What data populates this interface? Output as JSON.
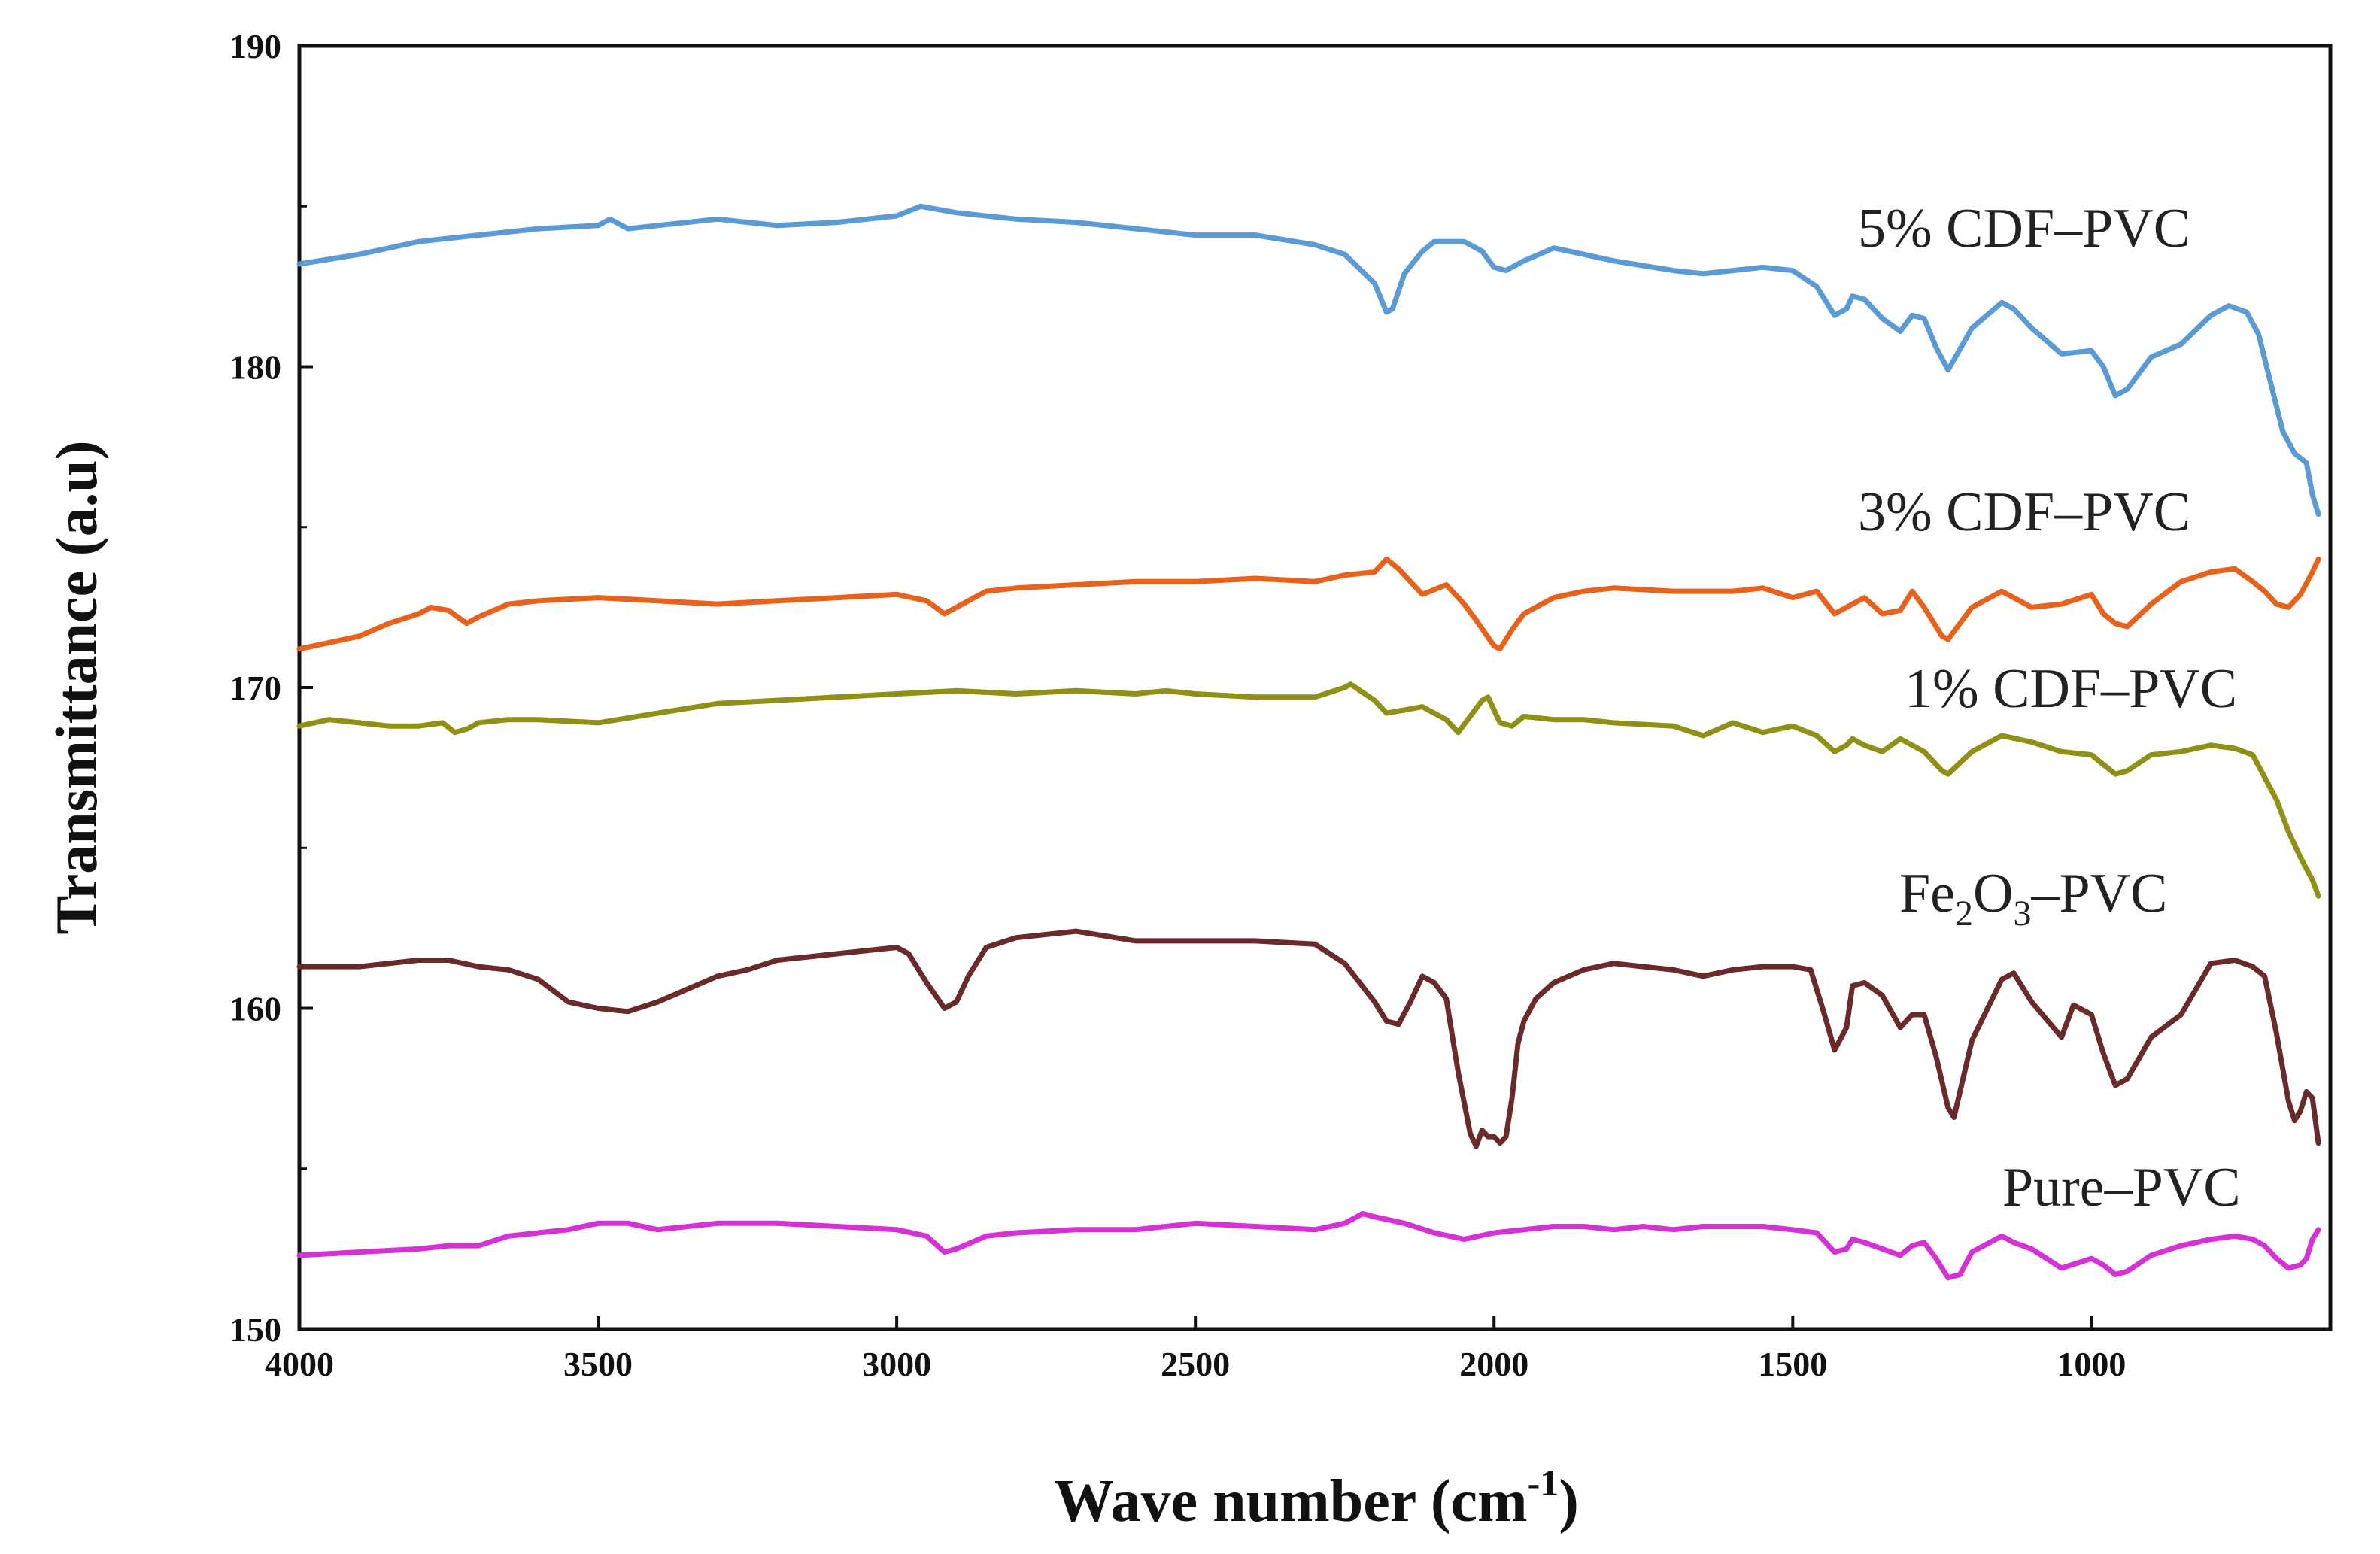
{
  "chart_data": {
    "type": "line",
    "title": "",
    "xlabel": "Wave number (cm",
    "xlabel_sup": "-1",
    "xlabel_close": ")",
    "ylabel": "Transmittance (a.u)",
    "xlim": [
      4000,
      600
    ],
    "ylim": [
      150,
      190
    ],
    "x_ticks": [
      4000,
      3500,
      3000,
      2500,
      2000,
      1500,
      1000
    ],
    "y_ticks": [
      150,
      160,
      170,
      180,
      190
    ],
    "grid": false,
    "series": [
      {
        "name": "5% CDF–PVC",
        "label_parts": {
          "text": "5% CDF–PVC"
        },
        "color": "#5B9BD5",
        "x": [
          4000,
          3900,
          3800,
          3700,
          3600,
          3500,
          3480,
          3450,
          3400,
          3300,
          3200,
          3100,
          3000,
          2960,
          2900,
          2800,
          2700,
          2600,
          2500,
          2400,
          2300,
          2250,
          2200,
          2180,
          2170,
          2150,
          2120,
          2100,
          2050,
          2020,
          2000,
          1980,
          1950,
          1900,
          1850,
          1800,
          1700,
          1650,
          1600,
          1550,
          1500,
          1460,
          1430,
          1410,
          1400,
          1380,
          1350,
          1320,
          1300,
          1280,
          1260,
          1240,
          1200,
          1150,
          1130,
          1100,
          1050,
          1000,
          980,
          960,
          940,
          900,
          850,
          800,
          770,
          740,
          720,
          700,
          680,
          660,
          640,
          630,
          620
        ],
        "y": [
          183.2,
          183.5,
          183.9,
          184.1,
          184.3,
          184.4,
          184.6,
          184.3,
          184.4,
          184.6,
          184.4,
          184.5,
          184.7,
          185.0,
          184.8,
          184.6,
          184.5,
          184.3,
          184.1,
          184.1,
          183.8,
          183.5,
          182.6,
          181.7,
          181.8,
          182.9,
          183.6,
          183.9,
          183.9,
          183.6,
          183.1,
          183.0,
          183.3,
          183.7,
          183.5,
          183.3,
          183.0,
          182.9,
          183.0,
          183.1,
          183.0,
          182.5,
          181.6,
          181.8,
          182.2,
          182.1,
          181.5,
          181.1,
          181.6,
          181.5,
          180.6,
          179.9,
          181.2,
          182.0,
          181.8,
          181.2,
          180.4,
          180.5,
          180.0,
          179.1,
          179.3,
          180.3,
          180.7,
          181.6,
          181.9,
          181.7,
          181.0,
          179.5,
          178.0,
          177.3,
          177.0,
          176.0,
          175.4
        ]
      },
      {
        "name": "3% CDF–PVC",
        "color": "#E8621C",
        "x": [
          4000,
          3950,
          3900,
          3850,
          3800,
          3780,
          3750,
          3720,
          3700,
          3650,
          3600,
          3500,
          3400,
          3300,
          3200,
          3100,
          3000,
          2950,
          2920,
          2900,
          2850,
          2800,
          2700,
          2600,
          2500,
          2400,
          2300,
          2250,
          2200,
          2180,
          2160,
          2120,
          2080,
          2050,
          2030,
          2000,
          1990,
          1970,
          1950,
          1900,
          1850,
          1800,
          1700,
          1600,
          1550,
          1500,
          1460,
          1430,
          1410,
          1400,
          1380,
          1350,
          1320,
          1300,
          1280,
          1250,
          1240,
          1200,
          1150,
          1100,
          1050,
          1000,
          980,
          960,
          940,
          900,
          850,
          800,
          760,
          730,
          710,
          690,
          670,
          650,
          630,
          620
        ],
        "y": [
          171.2,
          171.4,
          171.6,
          172.0,
          172.3,
          172.5,
          172.4,
          172.0,
          172.2,
          172.6,
          172.7,
          172.8,
          172.7,
          172.6,
          172.7,
          172.8,
          172.9,
          172.7,
          172.3,
          172.5,
          173.0,
          173.1,
          173.2,
          173.3,
          173.3,
          173.4,
          173.3,
          173.5,
          173.6,
          174.0,
          173.7,
          172.9,
          173.2,
          172.6,
          172.1,
          171.3,
          171.2,
          171.8,
          172.3,
          172.8,
          173.0,
          173.1,
          173.0,
          173.0,
          173.1,
          172.8,
          173.0,
          172.3,
          172.5,
          172.6,
          172.8,
          172.3,
          172.4,
          173.0,
          172.5,
          171.6,
          171.5,
          172.5,
          173.0,
          172.5,
          172.6,
          172.9,
          172.3,
          172.0,
          171.9,
          172.6,
          173.3,
          173.6,
          173.7,
          173.3,
          173.0,
          172.6,
          172.5,
          172.9,
          173.6,
          174.0
        ]
      },
      {
        "name": "1% CDF–PVC",
        "color": "#8F9014",
        "x": [
          4000,
          3950,
          3900,
          3850,
          3800,
          3760,
          3740,
          3720,
          3700,
          3650,
          3600,
          3500,
          3400,
          3300,
          3200,
          3100,
          3000,
          2900,
          2800,
          2700,
          2600,
          2550,
          2500,
          2400,
          2300,
          2250,
          2240,
          2200,
          2180,
          2150,
          2120,
          2080,
          2060,
          2040,
          2020,
          2010,
          2000,
          1990,
          1970,
          1950,
          1900,
          1850,
          1800,
          1700,
          1650,
          1600,
          1550,
          1500,
          1460,
          1430,
          1410,
          1400,
          1380,
          1350,
          1320,
          1300,
          1280,
          1250,
          1240,
          1200,
          1150,
          1100,
          1050,
          1000,
          980,
          960,
          940,
          900,
          850,
          800,
          760,
          730,
          710,
          690,
          670,
          650,
          630,
          620
        ],
        "y": [
          168.8,
          169.0,
          168.9,
          168.8,
          168.8,
          168.9,
          168.6,
          168.7,
          168.9,
          169.0,
          169.0,
          168.9,
          169.2,
          169.5,
          169.6,
          169.7,
          169.8,
          169.9,
          169.8,
          169.9,
          169.8,
          169.9,
          169.8,
          169.7,
          169.7,
          170.0,
          170.1,
          169.6,
          169.2,
          169.3,
          169.4,
          169.0,
          168.6,
          169.1,
          169.6,
          169.7,
          169.3,
          168.9,
          168.8,
          169.1,
          169.0,
          169.0,
          168.9,
          168.8,
          168.5,
          168.9,
          168.6,
          168.8,
          168.5,
          168.0,
          168.2,
          168.4,
          168.2,
          168.0,
          168.4,
          168.2,
          168.0,
          167.4,
          167.3,
          168.0,
          168.5,
          168.3,
          168.0,
          167.9,
          167.6,
          167.3,
          167.4,
          167.9,
          168.0,
          168.2,
          168.1,
          167.9,
          167.2,
          166.5,
          165.5,
          164.7,
          164.0,
          163.5
        ]
      },
      {
        "name": "Fe2O3–PVC",
        "label_parts": {
          "pre": "Fe",
          "sub1": "2",
          "mid": "O",
          "sub2": "3",
          "post": "–PVC"
        },
        "color": "#6B2A2A",
        "x": [
          4000,
          3900,
          3800,
          3750,
          3700,
          3650,
          3600,
          3550,
          3500,
          3450,
          3400,
          3350,
          3300,
          3250,
          3200,
          3100,
          3000,
          2980,
          2950,
          2920,
          2900,
          2880,
          2850,
          2800,
          2700,
          2600,
          2500,
          2400,
          2300,
          2250,
          2200,
          2180,
          2160,
          2140,
          2120,
          2100,
          2080,
          2060,
          2040,
          2030,
          2020,
          2010,
          2000,
          1990,
          1980,
          1970,
          1960,
          1950,
          1930,
          1900,
          1850,
          1800,
          1750,
          1700,
          1650,
          1600,
          1550,
          1500,
          1470,
          1450,
          1430,
          1410,
          1400,
          1380,
          1350,
          1320,
          1300,
          1280,
          1260,
          1240,
          1230,
          1200,
          1150,
          1130,
          1100,
          1050,
          1030,
          1000,
          980,
          960,
          940,
          900,
          850,
          800,
          760,
          730,
          710,
          690,
          670,
          660,
          650,
          640,
          630,
          620
        ],
        "y": [
          161.3,
          161.3,
          161.5,
          161.5,
          161.3,
          161.2,
          160.9,
          160.2,
          160.0,
          159.9,
          160.2,
          160.6,
          161.0,
          161.2,
          161.5,
          161.7,
          161.9,
          161.7,
          160.8,
          160.0,
          160.2,
          161.0,
          161.9,
          162.2,
          162.4,
          162.1,
          162.1,
          162.1,
          162.0,
          161.4,
          160.2,
          159.6,
          159.5,
          160.2,
          161.0,
          160.8,
          160.3,
          158.0,
          156.1,
          155.7,
          156.2,
          156.0,
          156.0,
          155.8,
          156.0,
          157.2,
          158.9,
          159.6,
          160.3,
          160.8,
          161.2,
          161.4,
          161.3,
          161.2,
          161.0,
          161.2,
          161.3,
          161.3,
          161.2,
          160.0,
          158.7,
          159.4,
          160.7,
          160.8,
          160.4,
          159.4,
          159.8,
          159.8,
          158.5,
          156.9,
          156.6,
          159.0,
          160.9,
          161.1,
          160.2,
          159.1,
          160.1,
          159.8,
          158.6,
          157.6,
          157.8,
          159.1,
          159.8,
          161.4,
          161.5,
          161.3,
          161.0,
          159.2,
          157.1,
          156.5,
          156.8,
          157.4,
          157.2,
          155.8
        ]
      },
      {
        "name": "Pure–PVC",
        "color": "#D631D6",
        "x": [
          4000,
          3900,
          3800,
          3750,
          3700,
          3650,
          3600,
          3550,
          3500,
          3450,
          3400,
          3300,
          3200,
          3100,
          3000,
          2950,
          2920,
          2900,
          2850,
          2800,
          2700,
          2600,
          2500,
          2400,
          2300,
          2250,
          2220,
          2200,
          2150,
          2100,
          2050,
          2000,
          1950,
          1900,
          1850,
          1800,
          1750,
          1700,
          1650,
          1600,
          1550,
          1500,
          1460,
          1430,
          1410,
          1400,
          1380,
          1350,
          1320,
          1300,
          1280,
          1260,
          1240,
          1220,
          1200,
          1150,
          1130,
          1100,
          1050,
          1000,
          980,
          960,
          940,
          900,
          850,
          800,
          760,
          730,
          710,
          690,
          670,
          650,
          640,
          630,
          620
        ],
        "y": [
          152.3,
          152.4,
          152.5,
          152.6,
          152.6,
          152.9,
          153.0,
          153.1,
          153.3,
          153.3,
          153.1,
          153.3,
          153.3,
          153.2,
          153.1,
          152.9,
          152.4,
          152.5,
          152.9,
          153.0,
          153.1,
          153.1,
          153.3,
          153.2,
          153.1,
          153.3,
          153.6,
          153.5,
          153.3,
          153.0,
          152.8,
          153.0,
          153.1,
          153.2,
          153.2,
          153.1,
          153.2,
          153.1,
          153.2,
          153.2,
          153.2,
          153.1,
          153.0,
          152.4,
          152.5,
          152.8,
          152.7,
          152.5,
          152.3,
          152.6,
          152.7,
          152.2,
          151.6,
          151.7,
          152.4,
          152.9,
          152.7,
          152.5,
          151.9,
          152.2,
          152.0,
          151.7,
          151.8,
          152.3,
          152.6,
          152.8,
          152.9,
          152.8,
          152.6,
          152.2,
          151.9,
          152.0,
          152.2,
          152.8,
          153.1
        ]
      }
    ]
  }
}
